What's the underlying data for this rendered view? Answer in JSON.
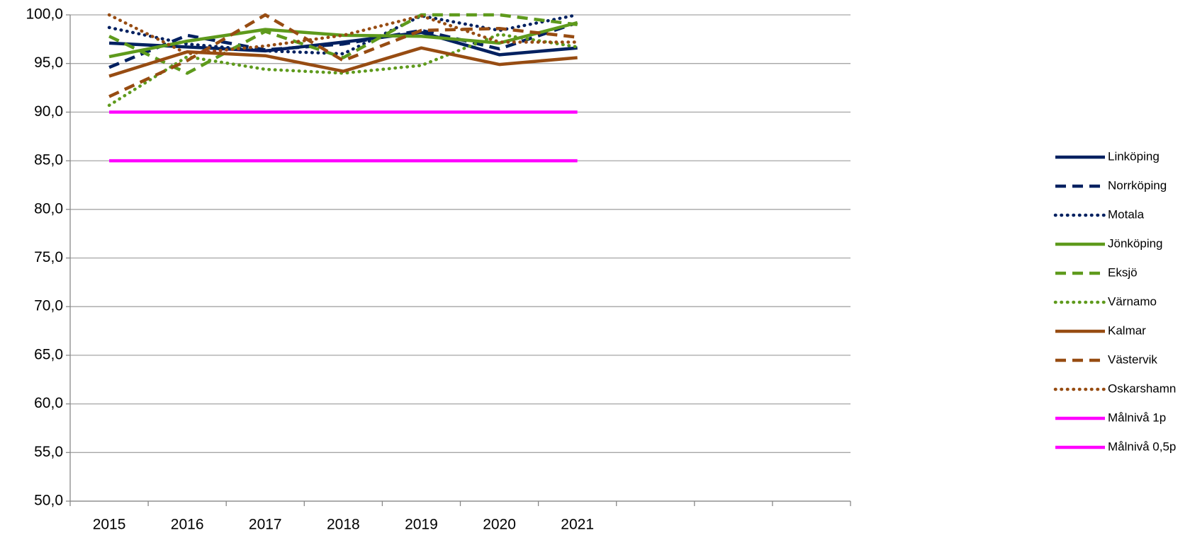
{
  "chart_data": {
    "type": "line",
    "categories": [
      "2015",
      "2016",
      "2017",
      "2018",
      "2019",
      "2020",
      "2021",
      null,
      null,
      null
    ],
    "ylim": [
      50,
      100
    ],
    "yticks": [
      {
        "value": 50,
        "label": "50,0"
      },
      {
        "value": 55,
        "label": "55,0"
      },
      {
        "value": 60,
        "label": "60,0"
      },
      {
        "value": 65,
        "label": "65,0"
      },
      {
        "value": 70,
        "label": "70,0"
      },
      {
        "value": 75,
        "label": "75,0"
      },
      {
        "value": 80,
        "label": "80,0"
      },
      {
        "value": 85,
        "label": "85,0"
      },
      {
        "value": 90,
        "label": "90,0"
      },
      {
        "value": 95,
        "label": "95,0"
      },
      {
        "value": 100,
        "label": "100,0"
      }
    ],
    "grid": true,
    "legend": "right",
    "series": [
      {
        "name": "Linköping",
        "color": "#002060",
        "style": "solid",
        "values": [
          97.1,
          96.7,
          96.3,
          97.2,
          98.2,
          95.9,
          96.6,
          null,
          null,
          null
        ]
      },
      {
        "name": "Norrköping",
        "color": "#002060",
        "style": "dashed",
        "values": [
          94.6,
          97.9,
          96.4,
          97.0,
          98.4,
          96.5,
          99.2,
          null,
          null,
          null
        ]
      },
      {
        "name": "Motala",
        "color": "#002060",
        "style": "dotted",
        "values": [
          98.7,
          97.0,
          96.3,
          96.0,
          99.9,
          98.4,
          100.0,
          null,
          null,
          null
        ]
      },
      {
        "name": "Jönköping",
        "color": "#5e9a1c",
        "style": "solid",
        "values": [
          95.7,
          97.3,
          98.5,
          97.9,
          97.8,
          97.1,
          99.2,
          null,
          null,
          null
        ]
      },
      {
        "name": "Eksjö",
        "color": "#5e9a1c",
        "style": "dashed",
        "values": [
          97.8,
          94.0,
          98.3,
          95.6,
          100.0,
          100.0,
          99.0,
          null,
          null,
          null
        ]
      },
      {
        "name": "Värnamo",
        "color": "#5e9a1c",
        "style": "dotted",
        "values": [
          90.7,
          95.7,
          94.4,
          94.0,
          94.8,
          98.0,
          96.7,
          null,
          null,
          null
        ]
      },
      {
        "name": "Kalmar",
        "color": "#974c12",
        "style": "solid",
        "values": [
          93.7,
          96.2,
          95.8,
          94.2,
          96.6,
          94.9,
          95.6,
          null,
          null,
          null
        ]
      },
      {
        "name": "Västervik",
        "color": "#974c12",
        "style": "dashed",
        "values": [
          91.6,
          95.3,
          100.0,
          95.3,
          98.4,
          98.6,
          97.7,
          null,
          null,
          null
        ]
      },
      {
        "name": "Oskarshamn",
        "color": "#974c12",
        "style": "dotted",
        "values": [
          100.0,
          96.0,
          96.8,
          97.9,
          99.9,
          97.2,
          97.2,
          null,
          null,
          null
        ]
      },
      {
        "name": "Målnivå 1p",
        "color": "#ff00ff",
        "style": "solid",
        "values": [
          90,
          90,
          90,
          90,
          90,
          90,
          90,
          null,
          null,
          null
        ]
      },
      {
        "name": "Målnivå 0,5p",
        "color": "#ff00ff",
        "style": "solid",
        "values": [
          85,
          85,
          85,
          85,
          85,
          85,
          85,
          null,
          null,
          null
        ]
      }
    ]
  }
}
